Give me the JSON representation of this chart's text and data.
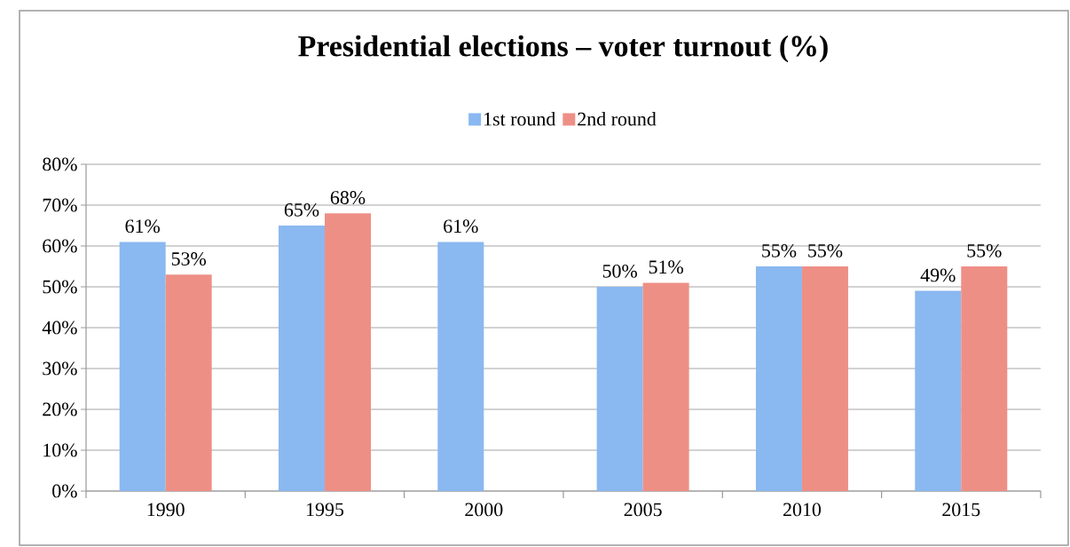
{
  "chart_data": {
    "type": "bar",
    "title": "Presidential elections – voter turnout (%)",
    "categories": [
      "1990",
      "1995",
      "2000",
      "2005",
      "2010",
      "2015"
    ],
    "series": [
      {
        "name": "1st round",
        "color": "#8ab8f0",
        "values": [
          61,
          65,
          61,
          50,
          55,
          49
        ],
        "value_labels": [
          "61%",
          "65%",
          "61%",
          "50%",
          "55%",
          "49%"
        ]
      },
      {
        "name": "2nd round",
        "color": "#ee8f86",
        "values": [
          53,
          68,
          null,
          51,
          55,
          55
        ],
        "value_labels": [
          "53%",
          "68%",
          null,
          "51%",
          "55%",
          "55%"
        ]
      }
    ],
    "ylim": [
      0,
      80
    ],
    "yticks": [
      {
        "value": 0,
        "label": "0%"
      },
      {
        "value": 10,
        "label": "10%"
      },
      {
        "value": 20,
        "label": "20%"
      },
      {
        "value": 30,
        "label": "30%"
      },
      {
        "value": 40,
        "label": "40%"
      },
      {
        "value": 50,
        "label": "50%"
      },
      {
        "value": 60,
        "label": "60%"
      },
      {
        "value": 70,
        "label": "70%"
      },
      {
        "value": 80,
        "label": "80%"
      }
    ],
    "grid": "y",
    "legend": "top"
  }
}
